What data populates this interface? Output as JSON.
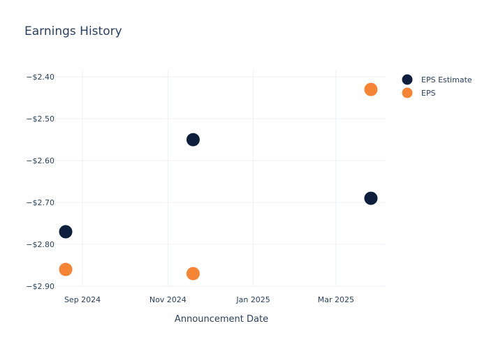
{
  "chart_data": {
    "type": "scatter",
    "title": "Earnings History",
    "xlabel": "Announcement Date",
    "ylabel": "",
    "x_tick_labels": [
      {
        "date": "2024-09-01",
        "label": "Sep 2024"
      },
      {
        "date": "2024-11-01",
        "label": "Nov 2024"
      },
      {
        "date": "2025-01-01",
        "label": "Jan 2025"
      },
      {
        "date": "2025-03-01",
        "label": "Mar 2025"
      }
    ],
    "y_ticks": [
      -2.4,
      -2.5,
      -2.6,
      -2.7,
      -2.8,
      -2.9
    ],
    "y_tick_labels": [
      "−$2.40",
      "−$2.50",
      "−$2.60",
      "−$2.70",
      "−$2.80",
      "−$2.90"
    ],
    "xlim": [
      "2024-08-13",
      "2025-04-06"
    ],
    "ylim": [
      -2.9,
      -2.383
    ],
    "grid": true,
    "legend_position": "top-right",
    "series": [
      {
        "name": "EPS Estimate",
        "color": "#0d1f3c",
        "points": [
          {
            "x": "2024-08-20",
            "y": -2.77
          },
          {
            "x": "2024-11-19",
            "y": -2.55
          },
          {
            "x": "2025-03-26",
            "y": -2.69
          }
        ]
      },
      {
        "name": "EPS",
        "color": "#f58434",
        "points": [
          {
            "x": "2024-08-20",
            "y": -2.86
          },
          {
            "x": "2024-11-19",
            "y": -2.87
          },
          {
            "x": "2025-03-26",
            "y": -2.43
          }
        ]
      }
    ]
  }
}
